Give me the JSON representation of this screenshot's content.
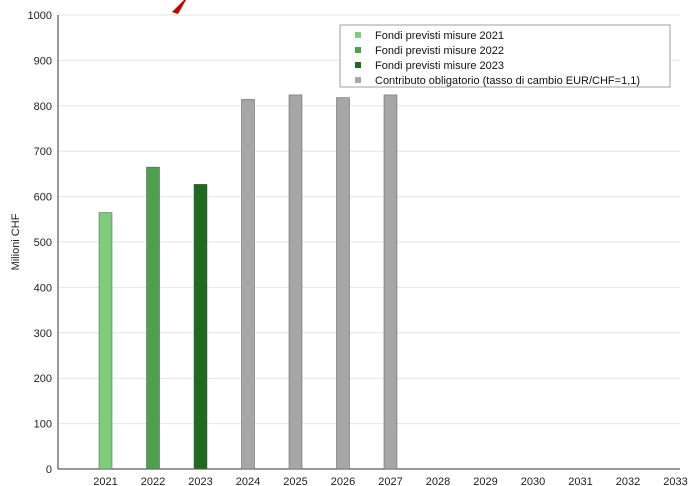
{
  "chart_data": {
    "type": "bar",
    "ylabel": "Milioni CHF",
    "xlabel": "",
    "title": "",
    "ylim": [
      0,
      1000
    ],
    "yticks": [
      0,
      100,
      200,
      300,
      400,
      500,
      600,
      700,
      800,
      900,
      1000
    ],
    "categories": [
      "2021",
      "2022",
      "2023",
      "2024",
      "2025",
      "2026",
      "2027",
      "2028",
      "2029",
      "2030",
      "2031",
      "2032",
      "2033"
    ],
    "grid": true,
    "legend_position": "top-right",
    "series": [
      {
        "name": "Fondi previsti misure 2021",
        "color": "#7dcd7d",
        "values": [
          565,
          null,
          null,
          null,
          null,
          null,
          null,
          null,
          null,
          null,
          null,
          null,
          null
        ]
      },
      {
        "name": "Fondi previsti misure  2022",
        "color": "#4ca24c",
        "values": [
          null,
          665,
          null,
          null,
          null,
          null,
          null,
          null,
          null,
          null,
          null,
          null,
          null
        ]
      },
      {
        "name": "Fondi previsti misure  2023",
        "color": "#1f6a1f",
        "values": [
          null,
          null,
          627,
          null,
          null,
          null,
          null,
          null,
          null,
          null,
          null,
          null,
          null
        ]
      },
      {
        "name": "Contributo obligatorio (tasso di cambio EUR/CHF=1,1)",
        "color": "#a6a6a6",
        "values": [
          null,
          null,
          null,
          814,
          824,
          818,
          824,
          null,
          null,
          null,
          null,
          null,
          null
        ]
      }
    ],
    "decoration_color": "#c00000"
  }
}
